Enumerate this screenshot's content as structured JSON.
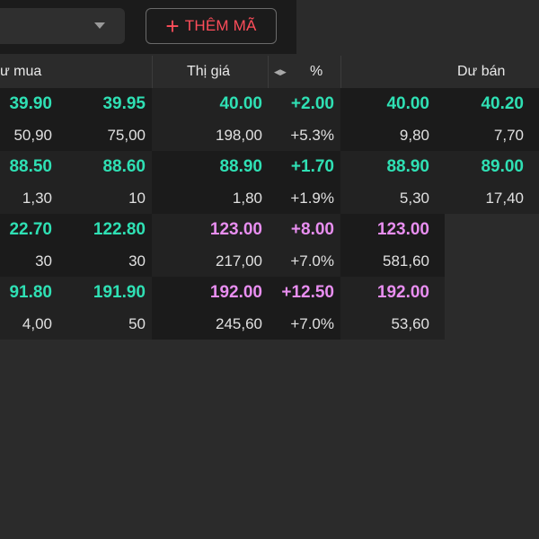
{
  "toolbar": {
    "add_label": "THÊM MÃ"
  },
  "header": {
    "buy_label": "ư mua",
    "price_label": "Thị giá",
    "pct_label": "%",
    "sell_label": "Dư bán"
  },
  "colors": {
    "up": "#2fe0b4",
    "ceiling": "#e88ef0"
  },
  "rows": [
    {
      "b2": {
        "price": "39.90",
        "vol": "50,90",
        "color": "green"
      },
      "b1": {
        "price": "39.95",
        "vol": "75,00",
        "color": "green"
      },
      "match": {
        "price": "40.00",
        "vol": "198,00",
        "color": "green"
      },
      "change": {
        "value": "+2.00",
        "pct": "+5.3%",
        "color": "green"
      },
      "s1": {
        "price": "40.00",
        "vol": "9,80",
        "color": "green"
      },
      "s2": {
        "price": "40.20",
        "vol": "7,70",
        "color": "green"
      }
    },
    {
      "b2": {
        "price": "88.50",
        "vol": "1,30",
        "color": "green"
      },
      "b1": {
        "price": "88.60",
        "vol": "10",
        "color": "green"
      },
      "match": {
        "price": "88.90",
        "vol": "1,80",
        "color": "green"
      },
      "change": {
        "value": "+1.70",
        "pct": "+1.9%",
        "color": "green"
      },
      "s1": {
        "price": "88.90",
        "vol": "5,30",
        "color": "green"
      },
      "s2": {
        "price": "89.00",
        "vol": "17,40",
        "color": "green"
      }
    },
    {
      "b2": {
        "price": "22.70",
        "vol": "30",
        "color": "green"
      },
      "b1": {
        "price": "122.80",
        "vol": "30",
        "color": "green"
      },
      "match": {
        "price": "123.00",
        "vol": "217,00",
        "color": "purple"
      },
      "change": {
        "value": "+8.00",
        "pct": "+7.0%",
        "color": "purple"
      },
      "s1": {
        "price": "123.00",
        "vol": "581,60",
        "color": "purple"
      },
      "s2": {
        "price": "",
        "vol": "",
        "color": "green"
      }
    },
    {
      "b2": {
        "price": "91.80",
        "vol": "4,00",
        "color": "green"
      },
      "b1": {
        "price": "191.90",
        "vol": "50",
        "color": "green"
      },
      "match": {
        "price": "192.00",
        "vol": "245,60",
        "color": "purple"
      },
      "change": {
        "value": "+12.50",
        "pct": "+7.0%",
        "color": "purple"
      },
      "s1": {
        "price": "192.00",
        "vol": "53,60",
        "color": "purple"
      },
      "s2": {
        "price": "",
        "vol": "",
        "color": "green"
      }
    }
  ]
}
